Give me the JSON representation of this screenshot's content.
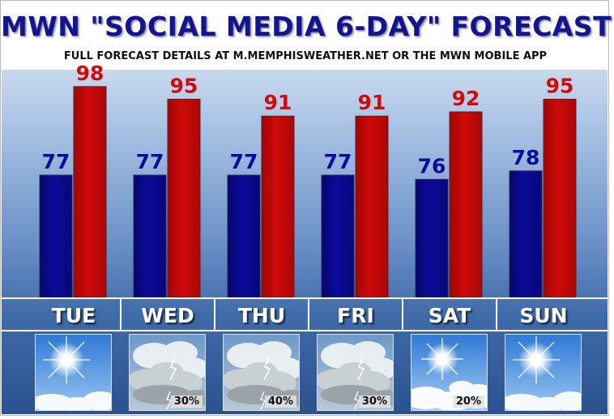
{
  "title": "MWN \"SOCIAL MEDIA 6-DAY\" FORECAST",
  "subtitle": "FULL FORECAST DETAILS AT M.MEMPHISWEATHER.NET OR THE MWN MOBILE APP",
  "colors": {
    "low": "#0b0b9a",
    "high": "#cf0a0a",
    "title": "#14148f"
  },
  "chart_data": {
    "type": "bar",
    "categories": [
      "TUE",
      "WED",
      "THU",
      "FRI",
      "SAT",
      "SUN"
    ],
    "series": [
      {
        "values": [
          77,
          77,
          77,
          77,
          76,
          78
        ]
      },
      {
        "values": [
          98,
          95,
          91,
          91,
          92,
          95
        ]
      }
    ],
    "ylim": [
      48,
      102
    ],
    "grid": false,
    "legend": "none"
  },
  "days": [
    {
      "label": "TUE",
      "icon": "sunny-icon",
      "pop": ""
    },
    {
      "label": "WED",
      "icon": "thunderstorm-icon",
      "pop": "30%"
    },
    {
      "label": "THU",
      "icon": "thunderstorm-icon",
      "pop": "40%"
    },
    {
      "label": "FRI",
      "icon": "thunderstorm-icon",
      "pop": "30%"
    },
    {
      "label": "SAT",
      "icon": "partly-sunny-icon",
      "pop": "20%"
    },
    {
      "label": "SUN",
      "icon": "sunny-icon",
      "pop": ""
    }
  ]
}
